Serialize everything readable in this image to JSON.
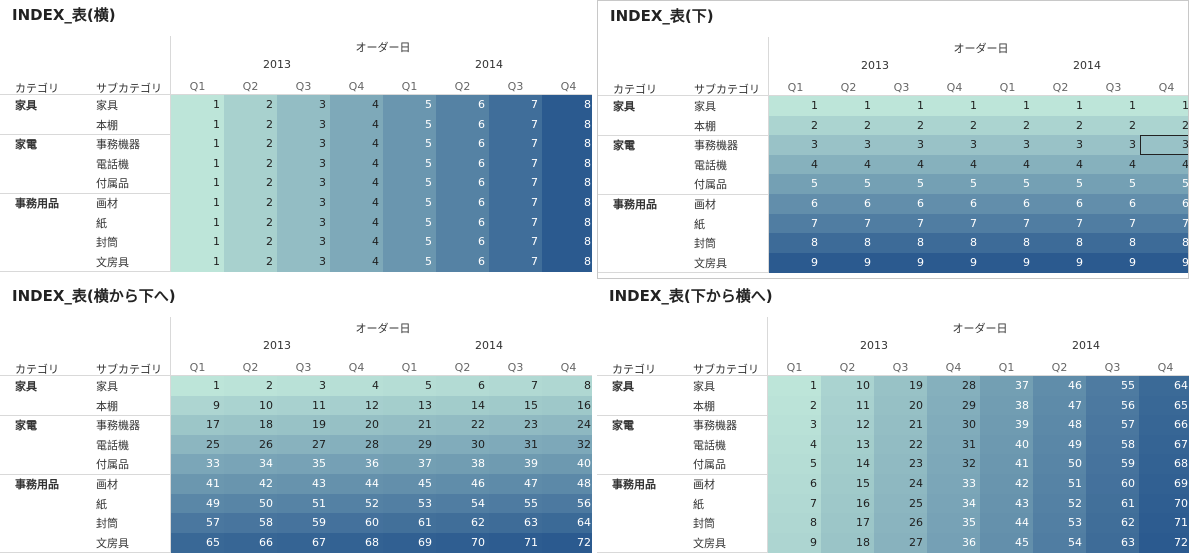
{
  "column_header": {
    "field": "オーダー日",
    "years": [
      "2013",
      "2014"
    ],
    "quarters": [
      "Q1",
      "Q2",
      "Q3",
      "Q4"
    ]
  },
  "row_header": {
    "category_label": "カテゴリ",
    "subcategory_label": "サブカテゴリ"
  },
  "row_groups": [
    {
      "category": "家具",
      "subcategories": [
        "家具",
        "本棚"
      ]
    },
    {
      "category": "家電",
      "subcategories": [
        "事務機器",
        "電話機",
        "付属品"
      ]
    },
    {
      "category": "事務用品",
      "subcategories": [
        "画材",
        "紙",
        "封筒",
        "文房具"
      ]
    }
  ],
  "colors": {
    "low": "#bde5d9",
    "high": "#2b5a8f",
    "text_dark": "#1e1e1e",
    "text_light": "#ffffff"
  },
  "chart_data": [
    {
      "type": "table",
      "title": "INDEX_表(横)",
      "mode": "across",
      "rows": [
        "家具",
        "本棚",
        "事務機器",
        "電話機",
        "付属品",
        "画材",
        "紙",
        "封筒",
        "文房具"
      ],
      "columns": [
        "2013 Q1",
        "2013 Q2",
        "2013 Q3",
        "2013 Q4",
        "2014 Q1",
        "2014 Q2",
        "2014 Q3",
        "2014 Q4"
      ],
      "values": [
        [
          1,
          2,
          3,
          4,
          5,
          6,
          7,
          8
        ],
        [
          1,
          2,
          3,
          4,
          5,
          6,
          7,
          8
        ],
        [
          1,
          2,
          3,
          4,
          5,
          6,
          7,
          8
        ],
        [
          1,
          2,
          3,
          4,
          5,
          6,
          7,
          8
        ],
        [
          1,
          2,
          3,
          4,
          5,
          6,
          7,
          8
        ],
        [
          1,
          2,
          3,
          4,
          5,
          6,
          7,
          8
        ],
        [
          1,
          2,
          3,
          4,
          5,
          6,
          7,
          8
        ],
        [
          1,
          2,
          3,
          4,
          5,
          6,
          7,
          8
        ],
        [
          1,
          2,
          3,
          4,
          5,
          6,
          7,
          8
        ]
      ],
      "max": 8
    },
    {
      "type": "table",
      "title": "INDEX_表(下)",
      "mode": "down",
      "rows": [
        "家具",
        "本棚",
        "事務機器",
        "電話機",
        "付属品",
        "画材",
        "紙",
        "封筒",
        "文房具"
      ],
      "columns": [
        "2013 Q1",
        "2013 Q2",
        "2013 Q3",
        "2013 Q4",
        "2014 Q1",
        "2014 Q2",
        "2014 Q3",
        "2014 Q4"
      ],
      "values": [
        [
          1,
          1,
          1,
          1,
          1,
          1,
          1,
          1
        ],
        [
          2,
          2,
          2,
          2,
          2,
          2,
          2,
          2
        ],
        [
          3,
          3,
          3,
          3,
          3,
          3,
          3,
          3
        ],
        [
          4,
          4,
          4,
          4,
          4,
          4,
          4,
          4
        ],
        [
          5,
          5,
          5,
          5,
          5,
          5,
          5,
          5
        ],
        [
          6,
          6,
          6,
          6,
          6,
          6,
          6,
          6
        ],
        [
          7,
          7,
          7,
          7,
          7,
          7,
          7,
          7
        ],
        [
          8,
          8,
          8,
          8,
          8,
          8,
          8,
          8
        ],
        [
          9,
          9,
          9,
          9,
          9,
          9,
          9,
          9
        ]
      ],
      "max": 9,
      "selected_cell": {
        "row": 2,
        "col": 7
      }
    },
    {
      "type": "table",
      "title": "INDEX_表(横から下へ)",
      "mode": "across-then-down",
      "rows": [
        "家具",
        "本棚",
        "事務機器",
        "電話機",
        "付属品",
        "画材",
        "紙",
        "封筒",
        "文房具"
      ],
      "columns": [
        "2013 Q1",
        "2013 Q2",
        "2013 Q3",
        "2013 Q4",
        "2014 Q1",
        "2014 Q2",
        "2014 Q3",
        "2014 Q4"
      ],
      "values": [
        [
          1,
          2,
          3,
          4,
          5,
          6,
          7,
          8
        ],
        [
          9,
          10,
          11,
          12,
          13,
          14,
          15,
          16
        ],
        [
          17,
          18,
          19,
          20,
          21,
          22,
          23,
          24
        ],
        [
          25,
          26,
          27,
          28,
          29,
          30,
          31,
          32
        ],
        [
          33,
          34,
          35,
          36,
          37,
          38,
          39,
          40
        ],
        [
          41,
          42,
          43,
          44,
          45,
          46,
          47,
          48
        ],
        [
          49,
          50,
          51,
          52,
          53,
          54,
          55,
          56
        ],
        [
          57,
          58,
          59,
          60,
          61,
          62,
          63,
          64
        ],
        [
          65,
          66,
          67,
          68,
          69,
          70,
          71,
          72
        ]
      ],
      "max": 72
    },
    {
      "type": "table",
      "title": "INDEX_表(下から横へ)",
      "mode": "down-then-across",
      "rows": [
        "家具",
        "本棚",
        "事務機器",
        "電話機",
        "付属品",
        "画材",
        "紙",
        "封筒",
        "文房具"
      ],
      "columns": [
        "2013 Q1",
        "2013 Q2",
        "2013 Q3",
        "2013 Q4",
        "2014 Q1",
        "2014 Q2",
        "2014 Q3",
        "2014 Q4"
      ],
      "values": [
        [
          1,
          10,
          19,
          28,
          37,
          46,
          55,
          64
        ],
        [
          2,
          11,
          20,
          29,
          38,
          47,
          56,
          65
        ],
        [
          3,
          12,
          21,
          30,
          39,
          48,
          57,
          66
        ],
        [
          4,
          13,
          22,
          31,
          40,
          49,
          58,
          67
        ],
        [
          5,
          14,
          23,
          32,
          41,
          50,
          59,
          68
        ],
        [
          6,
          15,
          24,
          33,
          42,
          51,
          60,
          69
        ],
        [
          7,
          16,
          25,
          34,
          43,
          52,
          61,
          70
        ],
        [
          8,
          17,
          26,
          35,
          44,
          53,
          62,
          71
        ],
        [
          9,
          18,
          27,
          36,
          45,
          54,
          63,
          72
        ]
      ],
      "max": 72
    }
  ]
}
